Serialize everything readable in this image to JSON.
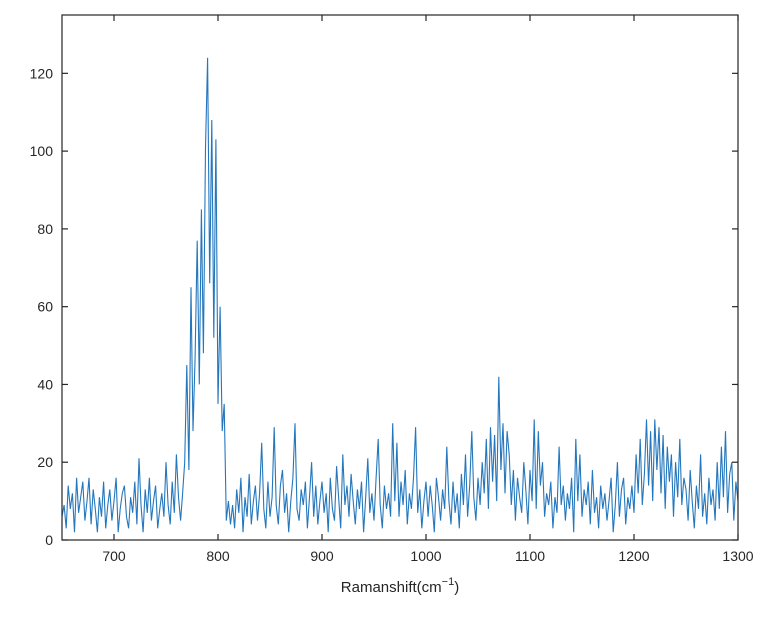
{
  "chart_data": {
    "type": "line",
    "title": "",
    "xlabel": "Ramanshift(cm⁻¹)",
    "xlabel_parts": {
      "main": "Ramanshift(cm",
      "sup": "−1",
      "close": ")"
    },
    "ylabel": "",
    "xlim": [
      650,
      1300
    ],
    "ylim": [
      0,
      135
    ],
    "xticks": [
      700,
      800,
      900,
      1000,
      1100,
      1200,
      1300
    ],
    "yticks": [
      0,
      20,
      40,
      60,
      80,
      100,
      120
    ],
    "grid": false,
    "legend": null,
    "line_color": "#2477bd",
    "axis_color": "#262626",
    "x_start": 650,
    "x_step": 2,
    "values": [
      6,
      9,
      3,
      14,
      8,
      12,
      2,
      16,
      7,
      11,
      15,
      5,
      10,
      16,
      4,
      13,
      8,
      2,
      11,
      6,
      15,
      3,
      9,
      13,
      5,
      10,
      16,
      2,
      8,
      12,
      14,
      6,
      3,
      11,
      7,
      15,
      4,
      21,
      9,
      2,
      13,
      7,
      16,
      5,
      10,
      14,
      3,
      8,
      12,
      6,
      20,
      9,
      4,
      15,
      7,
      22,
      11,
      5,
      12,
      20,
      45,
      18,
      65,
      28,
      47,
      77,
      40,
      85,
      48,
      101,
      124,
      66,
      108,
      52,
      103,
      35,
      60,
      28,
      35,
      5,
      10,
      4,
      9,
      3,
      13,
      7,
      16,
      2,
      11,
      6,
      17,
      4,
      10,
      14,
      5,
      12,
      25,
      8,
      3,
      15,
      6,
      11,
      29,
      9,
      4,
      14,
      18,
      7,
      12,
      2,
      10,
      16,
      30,
      8,
      5,
      13,
      9,
      15,
      3,
      11,
      20,
      6,
      14,
      4,
      10,
      15,
      7,
      12,
      2,
      16,
      8,
      5,
      19,
      11,
      3,
      22,
      9,
      14,
      6,
      17,
      10,
      4,
      13,
      8,
      15,
      2,
      11,
      21,
      7,
      12,
      5,
      16,
      26,
      9,
      3,
      14,
      8,
      12,
      6,
      30,
      10,
      25,
      6,
      15,
      9,
      18,
      4,
      12,
      8,
      16,
      29,
      7,
      13,
      3,
      10,
      15,
      6,
      14,
      9,
      2,
      16,
      11,
      5,
      13,
      8,
      24,
      10,
      4,
      15,
      7,
      12,
      3,
      17,
      9,
      22,
      6,
      14,
      28,
      11,
      5,
      16,
      9,
      20,
      12,
      26,
      8,
      29,
      15,
      27,
      10,
      42,
      18,
      30,
      12,
      28,
      22,
      9,
      18,
      5,
      16,
      11,
      7,
      20,
      13,
      4,
      18,
      10,
      31,
      8,
      28,
      14,
      20,
      6,
      12,
      9,
      15,
      3,
      11,
      7,
      24,
      9,
      14,
      5,
      12,
      8,
      16,
      2,
      26,
      10,
      22,
      6,
      13,
      9,
      15,
      4,
      18,
      7,
      11,
      3,
      14,
      8,
      12,
      5,
      10,
      16,
      2,
      9,
      20,
      6,
      13,
      16,
      4,
      11,
      8,
      14,
      7,
      22,
      12,
      26,
      9,
      17,
      31,
      14,
      28,
      10,
      31,
      18,
      29,
      12,
      27,
      8,
      24,
      15,
      22,
      6,
      20,
      11,
      26,
      9,
      16,
      13,
      5,
      18,
      10,
      3,
      14,
      8,
      22,
      6,
      12,
      4,
      16,
      9,
      13,
      5,
      20,
      8,
      24,
      11,
      28,
      7,
      17,
      20,
      5,
      15,
      10
    ]
  }
}
